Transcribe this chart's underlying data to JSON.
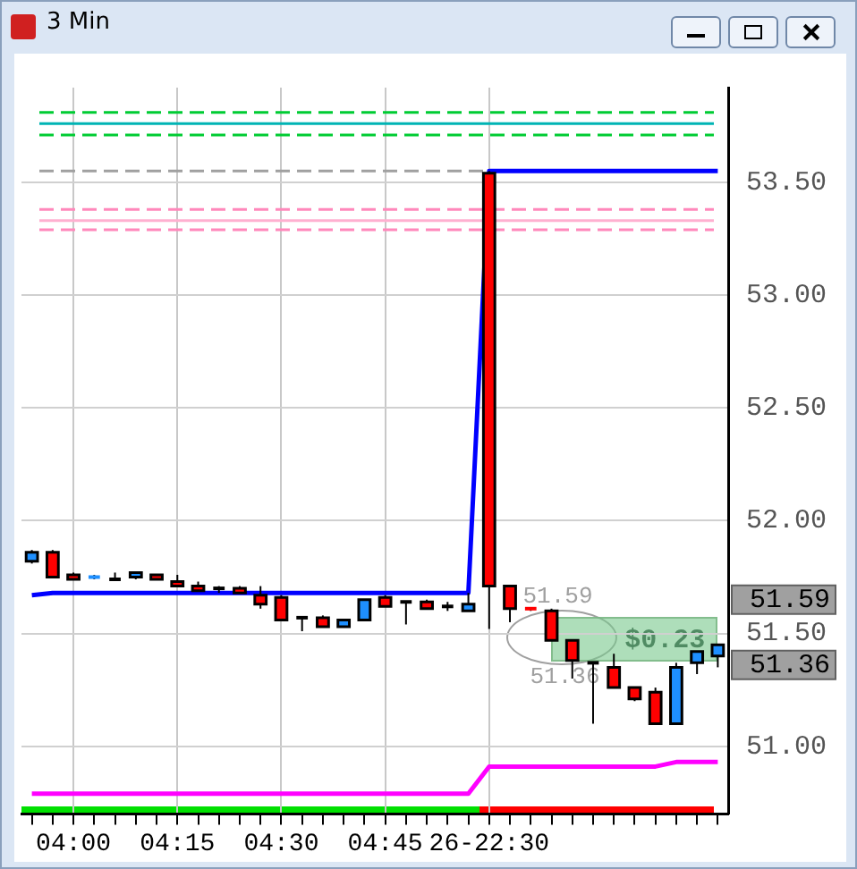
{
  "chart_data": {
    "type": "candlestick",
    "title": "3 Min",
    "categories": [
      null,
      null,
      "04:00",
      null,
      null,
      null,
      null,
      "04:15",
      null,
      null,
      null,
      null,
      "04:30",
      null,
      null,
      null,
      null,
      "04:45",
      null,
      null,
      null,
      null,
      "26-22:30",
      null,
      null,
      null,
      null,
      null,
      null,
      null,
      null,
      null,
      null,
      null
    ],
    "ohlc": [
      [
        51.82,
        51.87,
        51.81,
        51.86
      ],
      [
        51.86,
        51.87,
        51.75,
        51.75
      ],
      [
        51.76,
        51.77,
        51.74,
        51.74
      ],
      [
        51.74,
        51.76,
        51.74,
        51.75
      ],
      [
        51.74,
        51.77,
        51.74,
        51.74
      ],
      [
        51.75,
        51.77,
        51.74,
        51.77
      ],
      [
        51.76,
        51.76,
        51.74,
        51.74
      ],
      [
        51.73,
        51.76,
        51.71,
        51.71
      ],
      [
        51.71,
        51.73,
        51.69,
        51.69
      ],
      [
        51.7,
        51.71,
        51.68,
        51.7
      ],
      [
        51.7,
        51.71,
        51.68,
        51.68
      ],
      [
        51.67,
        51.71,
        51.61,
        51.63
      ],
      [
        51.66,
        51.67,
        51.56,
        51.56
      ],
      [
        51.57,
        51.57,
        51.51,
        51.57
      ],
      [
        51.57,
        51.58,
        51.53,
        51.53
      ],
      [
        51.53,
        51.56,
        51.53,
        51.56
      ],
      [
        51.56,
        51.65,
        51.56,
        51.65
      ],
      [
        51.66,
        51.67,
        51.62,
        51.62
      ],
      [
        51.64,
        51.64,
        51.54,
        51.64
      ],
      [
        51.64,
        51.65,
        51.61,
        51.61
      ],
      [
        51.62,
        51.64,
        51.6,
        51.62
      ],
      [
        51.6,
        51.68,
        51.6,
        51.63
      ],
      [
        53.54,
        53.55,
        51.52,
        51.71
      ],
      [
        51.71,
        51.71,
        51.55,
        51.61
      ],
      [
        51.61,
        51.61,
        51.6,
        51.6
      ],
      [
        51.6,
        51.61,
        51.47,
        51.47
      ],
      [
        51.47,
        51.47,
        51.3,
        51.38
      ],
      [
        51.37,
        51.37,
        51.1,
        51.37
      ],
      [
        51.35,
        51.41,
        51.26,
        51.26
      ],
      [
        51.26,
        51.26,
        51.2,
        51.21
      ],
      [
        51.24,
        51.26,
        51.1,
        51.1
      ],
      [
        51.1,
        51.37,
        51.1,
        51.35
      ],
      [
        51.37,
        51.42,
        51.32,
        51.42
      ],
      [
        51.4,
        51.45,
        51.35,
        51.45
      ]
    ],
    "colors": [
      "#1e8fff",
      "#ff0000",
      "#ff0000",
      "#1e8fff",
      "#000000",
      "#1e8fff",
      "#ff0000",
      "#ff0000",
      "#ff0000",
      "#000000",
      "#ff0000",
      "#ff0000",
      "#ff0000",
      "#000000",
      "#ff0000",
      "#1e8fff",
      "#1e8fff",
      "#ff0000",
      "#000000",
      "#ff0000",
      "#000000",
      "#1e8fff",
      "#ff0000",
      "#ff0000",
      "#ff0000",
      "#ff0000",
      "#ff0000",
      "#000000",
      "#ff0000",
      "#ff0000",
      "#ff0000",
      "#1e8fff",
      "#1e8fff",
      "#1e8fff"
    ],
    "series": [
      {
        "type": "line",
        "color": "#0000ff",
        "values": [
          51.67,
          51.68,
          51.68,
          51.68,
          51.68,
          51.68,
          51.68,
          51.68,
          51.68,
          51.68,
          51.68,
          51.68,
          51.68,
          51.68,
          51.68,
          51.68,
          51.68,
          51.68,
          51.68,
          51.68,
          51.68,
          51.68,
          53.55,
          53.55,
          53.55,
          53.55,
          53.55,
          53.55,
          53.55,
          53.55,
          53.55,
          53.55,
          53.55,
          53.55
        ]
      },
      {
        "type": "line",
        "color": "#ff00ff",
        "values": [
          50.79,
          50.79,
          50.79,
          50.79,
          50.79,
          50.79,
          50.79,
          50.79,
          50.79,
          50.79,
          50.79,
          50.79,
          50.79,
          50.79,
          50.79,
          50.79,
          50.79,
          50.79,
          50.79,
          50.79,
          50.79,
          50.79,
          50.91,
          50.91,
          50.91,
          50.91,
          50.91,
          50.91,
          50.91,
          50.91,
          50.91,
          50.93,
          50.93,
          50.93
        ]
      }
    ],
    "marker": "none",
    "ylim": [
      50.7,
      53.92
    ],
    "yticks": [
      {
        "value": 51,
        "label": "51.00"
      },
      {
        "value": 51.5,
        "label": "51.50"
      },
      {
        "value": 52,
        "label": "52.00"
      },
      {
        "value": 52.5,
        "label": "52.50"
      },
      {
        "value": 53,
        "label": "53.00"
      },
      {
        "value": 53.5,
        "label": "53.50"
      }
    ],
    "grid": true,
    "ref_lines": [
      {
        "axis": "y",
        "value": 53.81,
        "color": "#00cc33",
        "line_style": "dashed"
      },
      {
        "axis": "y",
        "value": 53.76,
        "color": "#00b4b4",
        "line_style": "solid"
      },
      {
        "axis": "y",
        "value": 53.71,
        "color": "#00cc33",
        "line_style": "dashed"
      },
      {
        "axis": "y",
        "value": 53.55,
        "color": "#a0a0a0",
        "line_style": "dashed"
      },
      {
        "axis": "y",
        "value": 53.38,
        "color": "#ff88bb",
        "line_style": "dashed"
      },
      {
        "axis": "y",
        "value": 53.33,
        "color": "#ffb0d0",
        "line_style": "solid"
      },
      {
        "axis": "y",
        "value": 53.29,
        "color": "#ff88bb",
        "line_style": "dashed"
      }
    ],
    "annotations": [
      "51.59",
      "51.36",
      "51.59",
      "51.36",
      "$0.23"
    ]
  }
}
